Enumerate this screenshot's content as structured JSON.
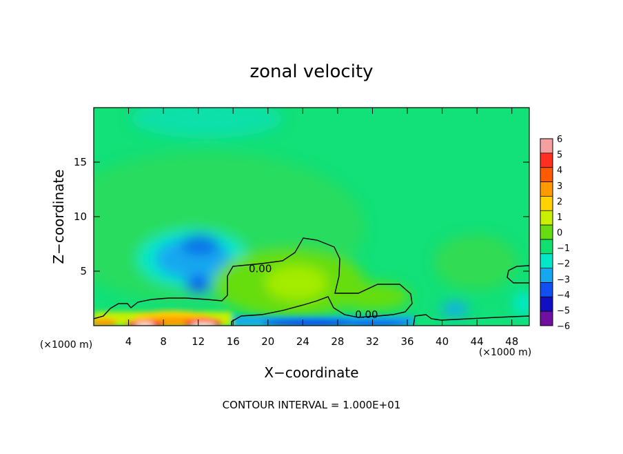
{
  "chart_data": {
    "type": "heatmap",
    "title": "zonal velocity",
    "xlabel": "X−coordinate",
    "ylabel": "Z−coordinate",
    "x_unit_left": "(×1000 m)",
    "x_unit_right": "(×1000 m)",
    "footer": "CONTOUR INTERVAL = 1.000E+01",
    "xlim": [
      0,
      50
    ],
    "ylim": [
      0,
      20
    ],
    "x_ticks": [
      4,
      8,
      12,
      16,
      20,
      24,
      28,
      32,
      36,
      40,
      44,
      48
    ],
    "x_tick_labels": [
      "4",
      "8",
      "12",
      "16",
      "20",
      "24",
      "28",
      "32",
      "36",
      "40",
      "44",
      "48"
    ],
    "y_ticks": [
      5,
      10,
      15
    ],
    "y_tick_labels": [
      "5",
      "10",
      "15"
    ],
    "contour_labels": [
      {
        "text": "0.00",
        "x": 17.8,
        "z": 4.9
      },
      {
        "text": "0.00",
        "x": 30.0,
        "z": 0.7
      }
    ],
    "colorbar": {
      "levels": [
        6,
        5,
        4,
        3,
        2,
        1,
        0,
        -1,
        -2,
        -3,
        -4,
        -5,
        -6
      ],
      "tick_labels": [
        "6",
        "5",
        "4",
        "3",
        "2",
        "1",
        "0",
        "−1",
        "−2",
        "−3",
        "−4",
        "−5",
        "−6"
      ],
      "colors": [
        "#f4a0a0",
        "#ff3020",
        "#ff5a00",
        "#ff9a00",
        "#ffd200",
        "#c8f000",
        "#66dd10",
        "#10e070",
        "#00e8c8",
        "#14a8f0",
        "#1050f0",
        "#1010c0",
        "#7010a0"
      ]
    },
    "features": [
      {
        "kind": "negative-core",
        "x": 11.5,
        "z": 7.0,
        "value": -2.6
      },
      {
        "kind": "negative-core",
        "x": 12.2,
        "z": 3.8,
        "value": -3.0
      },
      {
        "kind": "positive-region",
        "x": 23.0,
        "z": 4.0,
        "value": 1.5
      },
      {
        "kind": "positive-surface",
        "x": 11.0,
        "z": 0.3,
        "value": 5.5
      },
      {
        "kind": "negative-surface",
        "x": 26.0,
        "z": 0.3,
        "value": -4.5
      }
    ]
  }
}
